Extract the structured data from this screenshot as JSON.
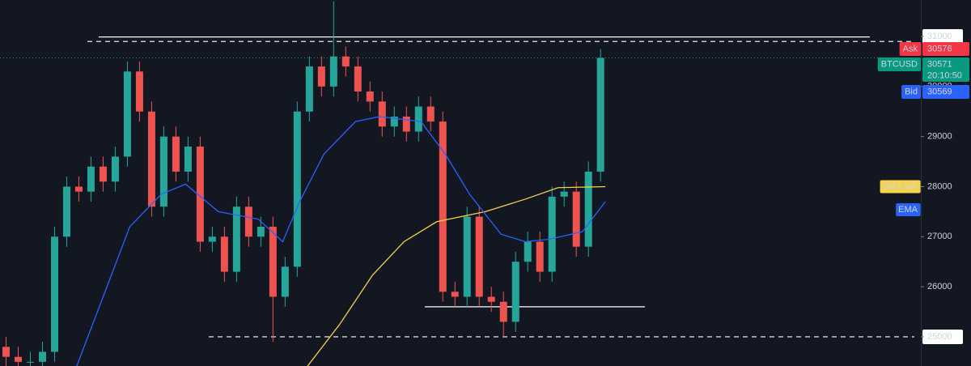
{
  "chart_data": {
    "type": "candlestick",
    "open": [
      24800,
      24600,
      24500,
      24500,
      24700,
      27000,
      28000,
      27900,
      28400,
      28100,
      28600,
      30300,
      29500,
      27600,
      29000,
      28300,
      28800,
      26900,
      27000,
      26300,
      27600,
      27000,
      27200,
      25800,
      26400,
      29500,
      30400,
      30000,
      30600,
      30400,
      29900,
      29700,
      29200,
      29400,
      29100,
      29600,
      29300,
      25900,
      25800,
      27400,
      25800,
      25700,
      25300,
      26500,
      26900,
      26300,
      27800,
      27900,
      26800,
      28300
    ],
    "high": [
      25000,
      24800,
      24700,
      24900,
      27200,
      28200,
      28200,
      28600,
      28600,
      28800,
      30500,
      30500,
      29700,
      29200,
      29200,
      29000,
      29000,
      27200,
      27200,
      27800,
      27800,
      27400,
      27400,
      26600,
      29700,
      30600,
      30600,
      31700,
      30800,
      30600,
      30100,
      29900,
      29600,
      29600,
      29800,
      29800,
      29500,
      26100,
      27600,
      27600,
      26000,
      25900,
      26700,
      27100,
      27100,
      28000,
      28100,
      28100,
      28500,
      30750
    ],
    "low": [
      24400,
      24300,
      24300,
      24300,
      24500,
      26800,
      27700,
      27700,
      27900,
      27900,
      28400,
      29300,
      27400,
      27400,
      28100,
      28100,
      26700,
      26700,
      26100,
      26100,
      26800,
      26800,
      24900,
      25600,
      26200,
      29300,
      29800,
      29800,
      30200,
      29700,
      29500,
      29000,
      29000,
      28900,
      28900,
      29100,
      25700,
      25600,
      25600,
      25600,
      25500,
      25000,
      25100,
      26300,
      26100,
      26100,
      27600,
      26600,
      26600,
      28100
    ],
    "close": [
      24600,
      24500,
      24500,
      24700,
      27000,
      28000,
      27900,
      28400,
      28100,
      28600,
      30300,
      29500,
      27600,
      29000,
      28300,
      28800,
      26900,
      27000,
      26300,
      27600,
      27000,
      27200,
      25800,
      26400,
      29500,
      30400,
      30000,
      30600,
      30400,
      29900,
      29700,
      29200,
      29400,
      29100,
      29600,
      29300,
      25900,
      25800,
      27400,
      25800,
      25700,
      25300,
      26500,
      26900,
      26300,
      27800,
      27900,
      26800,
      28300,
      30571
    ],
    "up_color": "#26a69a",
    "down_color": "#ef5350",
    "series": [
      {
        "name": "SMA:MA",
        "color": "#f5d34a",
        "label_color": "#000000",
        "x": [
          24.8,
          27.5,
          30.2,
          32.8,
          35.5,
          39.5,
          42.8,
          45.5,
          49.4
        ],
        "values": [
          24400,
          25250,
          26230,
          26900,
          27300,
          27500,
          27750,
          27980,
          28000
        ]
      },
      {
        "name": "EMA",
        "color": "#2962ff",
        "label_color": "#ffffff",
        "x": [
          5.8,
          10.2,
          12.8,
          14.8,
          17.5,
          20.8,
          22.8,
          24.2,
          26.2,
          28.8,
          30.8,
          34.2,
          36.2,
          38.2,
          40.8,
          42.8,
          44.8,
          47.5,
          49.4
        ],
        "values": [
          24400,
          27200,
          27850,
          28050,
          27500,
          27350,
          26900,
          27700,
          28650,
          29300,
          29400,
          29300,
          28650,
          27850,
          27050,
          26900,
          26950,
          27100,
          27700
        ]
      }
    ],
    "levels": [
      {
        "value": 30990,
        "style": "solid"
      },
      {
        "value": 30900,
        "style": "dashed"
      },
      {
        "value": 25600,
        "style": "solid"
      },
      {
        "value": 25000,
        "style": "dashed"
      }
    ],
    "quotes": [
      {
        "name": "Ask",
        "value": 30576,
        "color": "#f23645"
      },
      {
        "name": "BTCUSD",
        "value": 30571,
        "time": "20:10:50",
        "color": "#089981"
      },
      {
        "name": "Bid",
        "value": 30569,
        "color": "#2962ff"
      }
    ],
    "xlim": [
      -0.5,
      75.4
    ],
    "ylim": [
      24417,
      31728
    ],
    "yticks": [
      25000,
      26000,
      27000,
      28000,
      29000,
      30000,
      31000
    ]
  }
}
